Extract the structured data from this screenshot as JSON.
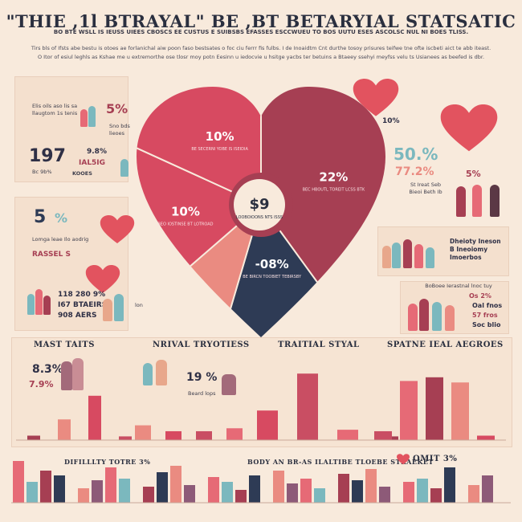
{
  "header": {
    "title": "\"THIE ,1l BTRAYAL\" BE ,BT BETARYIAL STATSATIC",
    "subtitle": "BO BTE WSLL IS IEUSS UIEES CBOSCS EE CUSTUS E SUIBSBS EFASSES ESCCWUEU TO BOS UUTU ESES ASCOLSC NUL NI BOES TLISS.",
    "paragraph_line1": "Tirs bls of Ifsts abe bestu is otoes ae forlanichal aiw poon faso bestsates o foc ciu ferrr fis fulbs. I de Inoaidtm Cnt durthe tosoy prisures teifwe tne ofte iscbeti aict te abb iteast.",
    "paragraph_line2": "O Itor of esiul leghls as Kshae me u extremorthe ose tlosr moy potn Eesinn u iedocvie u hsitge yacbs ter betuins a Btaeey ssehyi meyfss velu ts Usianees as beefed is dbr."
  },
  "left_stats": {
    "s1_text": "Elis oils aso lis sa llaugtom 1s tenis",
    "s1_pct": "5%",
    "s1_note": "Sno bds lieoes",
    "s2_big": "197",
    "s2_pct": "9.8%",
    "s2_note": "IAL5IG",
    "s2_sub": "Bc 9b%",
    "s2_sub2": "KOOES",
    "s3_big": "5",
    "s3_pct": "%",
    "s3_note": "Lomga leae Ilo aodrig",
    "s3_word": "RASSEL S",
    "s4_line1": "118 280 9%",
    "s4_line2": "I67 BTAEIRS",
    "s4_line3": "908 AERS",
    "s4_note": "lon"
  },
  "right_stats": {
    "r1_pct": "10%",
    "r2_big": "50.%",
    "r2_mid": "77.2%",
    "r2_note": "St Ireat Seb Bieoi Beth Ib",
    "r2_pct": "5%",
    "r3_text": "Dheioty Ineson B Ineoiomy Imoerbos",
    "r4_text": "BoBoee Ierastnal lnoc tuy",
    "r4_pct1": "Os 2%",
    "r4_pct2": "Oal fnos",
    "r4_pct3": "57 fros",
    "r4_pct4": "Soc blio"
  },
  "chart_data": [
    {
      "type": "pie",
      "center_label": "$9",
      "center_sub": "LOOBOIOONS NTS ISSS",
      "slices": [
        {
          "label": "10%",
          "value": 10,
          "note": "BE SECERNI YOBE IS ISEIDIAC SEC OBTOIC NNSEROLTBEISS",
          "color": "#d74a61"
        },
        {
          "label": "22%",
          "value": 22,
          "note": "BEC HBOUTL TOREIT LCSS BTKY IOSES",
          "color": "#a63f53"
        },
        {
          "label": "-08%",
          "value": 8,
          "note": "BE BIRCN TOOBIET TEBIRSBY TORAN EBS ISES",
          "color": "#2e3b55"
        },
        {
          "label": "",
          "value": 5,
          "note": "",
          "color": "#ea8b81"
        },
        {
          "label": "10%",
          "value": 10,
          "note": "BEO IOSTINSE BT LOTROAD",
          "color": "#d74a61"
        }
      ]
    },
    {
      "type": "bar",
      "title": "MAST TAITS",
      "label1": "8.3%",
      "label2": "7.9%",
      "categories": [
        "",
        "",
        "",
        ""
      ],
      "values": [
        6,
        28,
        60,
        5
      ]
    },
    {
      "type": "bar",
      "title": "NRIVAL TRYOTIESS",
      "label1": "19 %",
      "label2": "Beard lops",
      "categories": [
        "",
        "",
        "",
        "",
        ""
      ],
      "values": [
        20,
        12,
        12,
        16,
        5
      ]
    },
    {
      "type": "bar",
      "title": "TRAITIAL STYAL",
      "categories": [
        "",
        "",
        "",
        ""
      ],
      "values": [
        40,
        90,
        14,
        5
      ]
    },
    {
      "type": "bar",
      "title": "SPATNE IEAL AEGROES",
      "categories": [
        "",
        "",
        "",
        "",
        ""
      ],
      "values": [
        12,
        80,
        85,
        78,
        6
      ]
    }
  ],
  "bottom": {
    "b1_title": "DIFILLLTY TOTRE 3%",
    "b2_title": "BODY AN BR-AS ILALTIBE TLOEBE STRAEKET",
    "b3_pct": "OMIT 3%"
  },
  "colors": {
    "bg": "#f8eadc",
    "crimson": "#a63f53",
    "coral": "#e66a76",
    "peach": "#ea8b81",
    "navy": "#2e3b55",
    "teal": "#7bb8be",
    "heart": "#e2535f"
  }
}
